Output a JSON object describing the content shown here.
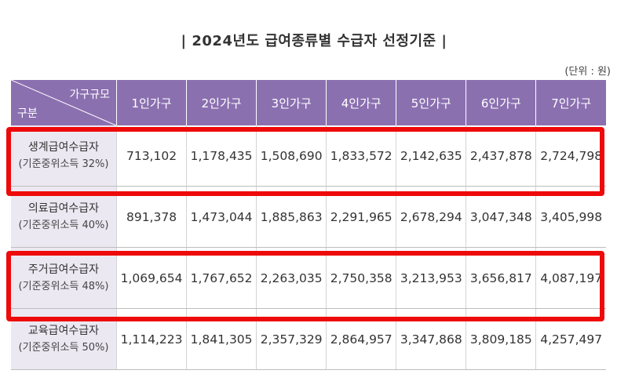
{
  "title": "| 2024년도 급여종류별 수급자 선정기준 |",
  "unit": "(단위 : 원)",
  "header": {
    "corner_top": "가구규모",
    "corner_bottom": "구분",
    "columns": [
      "1인가구",
      "2인가구",
      "3인가구",
      "4인가구",
      "5인가구",
      "6인가구",
      "7인가구"
    ]
  },
  "rows": [
    {
      "name": "생계급여수급자",
      "sub": "(기준중위소득 32%)",
      "values": [
        "713,102",
        "1,178,435",
        "1,508,690",
        "1,833,572",
        "2,142,635",
        "2,437,878",
        "2,724,798"
      ],
      "highlighted": true
    },
    {
      "name": "의료급여수급자",
      "sub": "(기준중위소득 40%)",
      "values": [
        "891,378",
        "1,473,044",
        "1,885,863",
        "2,291,965",
        "2,678,294",
        "3,047,348",
        "3,405,998"
      ],
      "highlighted": false
    },
    {
      "name": "주거급여수급자",
      "sub": "(기준중위소득 48%)",
      "values": [
        "1,069,654",
        "1,767,652",
        "2,263,035",
        "2,750,358",
        "3,213,953",
        "3,656,817",
        "4,087,197"
      ],
      "highlighted": true
    },
    {
      "name": "교육급여수급자",
      "sub": "(기준중위소득 50%)",
      "values": [
        "1,114,223",
        "1,841,305",
        "2,357,329",
        "2,864,957",
        "3,347,868",
        "3,809,185",
        "4,257,497"
      ],
      "highlighted": false
    }
  ],
  "colors": {
    "header_bg": "#8b70b0",
    "rowhead_bg": "#ece8f2",
    "highlight": "#ee0a0a"
  }
}
